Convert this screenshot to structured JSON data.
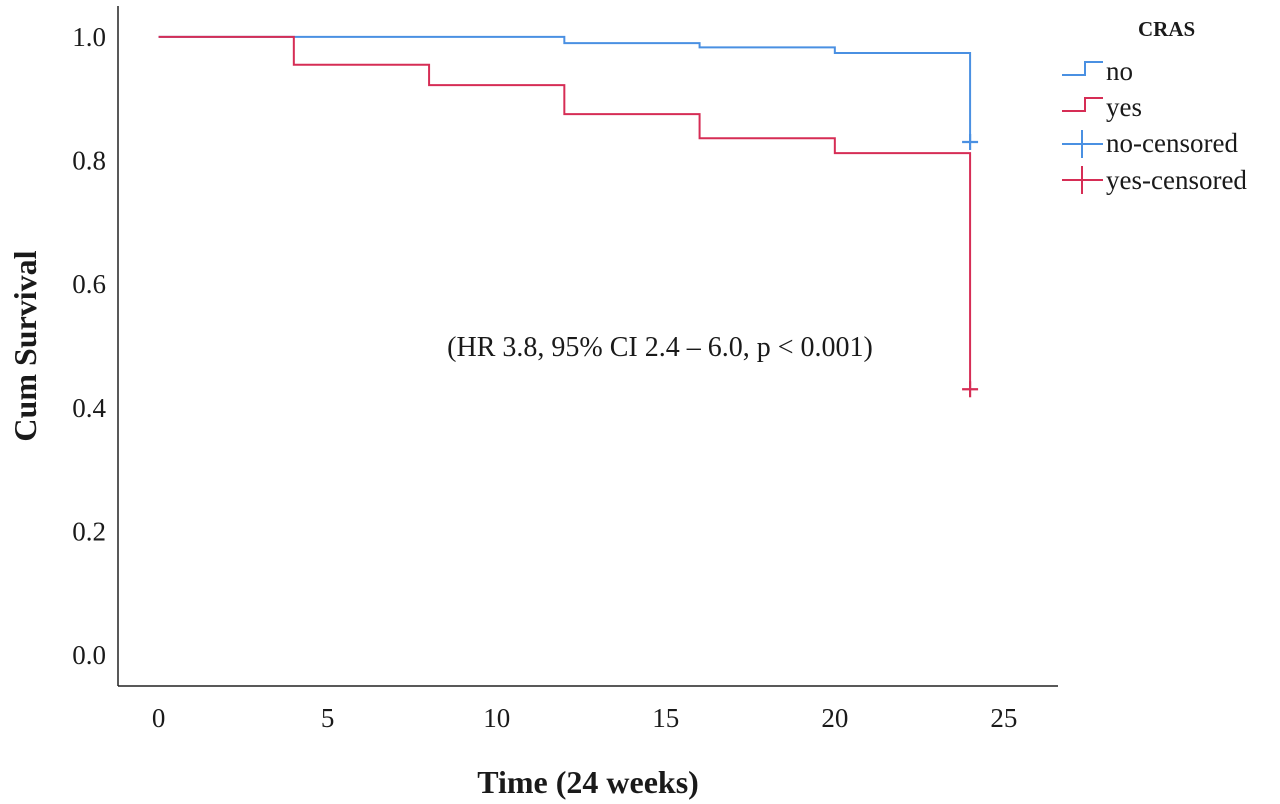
{
  "chart_data": {
    "type": "line",
    "subtype": "kaplan-meier-step",
    "xlabel": "Time (24 weeks)",
    "ylabel": "Cum Survival",
    "xlim": [
      -1.2,
      26.6
    ],
    "ylim": [
      -0.05,
      1.05
    ],
    "x_ticks": [
      0,
      5,
      10,
      15,
      20,
      25
    ],
    "y_ticks": [
      0.0,
      0.2,
      0.4,
      0.6,
      0.8,
      1.0
    ],
    "x_tick_labels": [
      "0",
      "5",
      "10",
      "15",
      "20",
      "25"
    ],
    "y_tick_labels": [
      "0.0",
      "0.2",
      "0.4",
      "0.6",
      "0.8",
      "1.0"
    ],
    "grid": false,
    "legend": {
      "title": "CRAS",
      "placement": "top-right",
      "entries": [
        "no",
        "yes",
        "no-censored",
        "yes-censored"
      ]
    },
    "annotation": "(HR 3.8, 95% CI 2.4 – 6.0, p < 0.001)",
    "series": [
      {
        "name": "no",
        "color": "#4a90e2",
        "steps": [
          {
            "x": 0,
            "y": 1.0
          },
          {
            "x": 12,
            "y": 0.99
          },
          {
            "x": 16,
            "y": 0.983
          },
          {
            "x": 20,
            "y": 0.974
          },
          {
            "x": 24,
            "y": 0.83
          }
        ],
        "end_x": 24,
        "censored": [
          {
            "x": 24,
            "y": 0.83
          }
        ]
      },
      {
        "name": "yes",
        "color": "#d62d55",
        "steps": [
          {
            "x": 0,
            "y": 1.0
          },
          {
            "x": 4,
            "y": 0.955
          },
          {
            "x": 8,
            "y": 0.922
          },
          {
            "x": 12,
            "y": 0.875
          },
          {
            "x": 16,
            "y": 0.836
          },
          {
            "x": 20,
            "y": 0.812
          },
          {
            "x": 24,
            "y": 0.43
          }
        ],
        "end_x": 24,
        "censored": [
          {
            "x": 24,
            "y": 0.43
          }
        ]
      }
    ]
  }
}
